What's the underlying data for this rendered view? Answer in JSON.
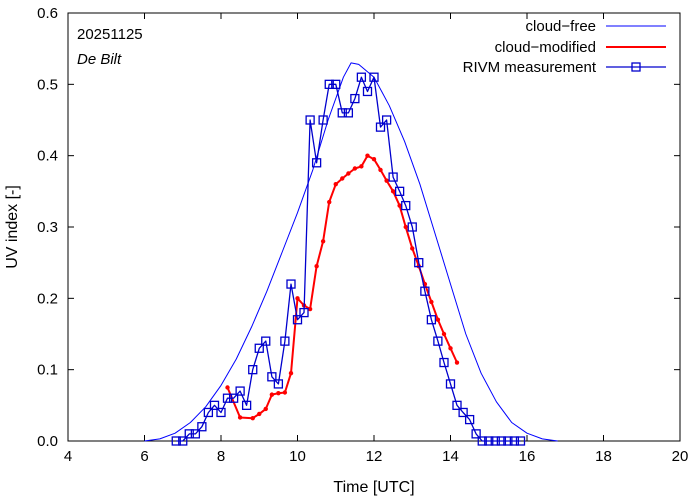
{
  "chart_data": {
    "type": "line",
    "xlabel": "Time  [UTC]",
    "ylabel": "UV index  [-]",
    "xlim": [
      4,
      20
    ],
    "ylim": [
      0,
      0.6
    ],
    "xticks": [
      4,
      6,
      8,
      10,
      12,
      14,
      16,
      18,
      20
    ],
    "yticks": [
      0.0,
      0.1,
      0.2,
      0.3,
      0.4,
      0.5,
      0.6
    ],
    "xtick_labels": [
      "4",
      "6",
      "8",
      "10",
      "12",
      "14",
      "16",
      "18",
      "20"
    ],
    "ytick_labels": [
      "0.0",
      "0.1",
      "0.2",
      "0.3",
      "0.4",
      "0.5",
      "0.6"
    ],
    "annotations": {
      "date": "20251125",
      "location": "De Bilt"
    },
    "legend_position": "top-right",
    "series": [
      {
        "name": "cloud−free",
        "color": "#0000ff",
        "style": "line",
        "x": [
          6.0,
          6.4,
          6.8,
          7.2,
          7.6,
          8.0,
          8.4,
          8.8,
          9.2,
          9.6,
          10.0,
          10.4,
          10.8,
          11.2,
          11.4,
          11.6,
          12.0,
          12.4,
          12.8,
          13.2,
          13.6,
          14.0,
          14.4,
          14.8,
          15.2,
          15.6,
          16.0,
          16.4,
          16.8
        ],
        "y": [
          0.0,
          0.003,
          0.011,
          0.026,
          0.048,
          0.078,
          0.115,
          0.16,
          0.21,
          0.265,
          0.32,
          0.38,
          0.45,
          0.51,
          0.53,
          0.528,
          0.51,
          0.47,
          0.42,
          0.36,
          0.29,
          0.22,
          0.15,
          0.095,
          0.055,
          0.026,
          0.011,
          0.003,
          0.0
        ]
      },
      {
        "name": "cloud−modified",
        "color": "#ff0000",
        "style": "line-dots",
        "x": [
          8.17,
          8.5,
          8.83,
          9.0,
          9.17,
          9.33,
          9.5,
          9.67,
          9.83,
          10.0,
          10.17,
          10.33,
          10.5,
          10.67,
          10.83,
          11.0,
          11.17,
          11.33,
          11.5,
          11.67,
          11.83,
          12.0,
          12.17,
          12.33,
          12.5,
          12.67,
          12.83,
          13.0,
          13.17,
          13.33,
          13.5,
          13.67,
          13.83,
          14.0,
          14.17
        ],
        "y": [
          0.075,
          0.033,
          0.032,
          0.038,
          0.045,
          0.065,
          0.067,
          0.068,
          0.095,
          0.2,
          0.19,
          0.185,
          0.245,
          0.28,
          0.335,
          0.36,
          0.368,
          0.375,
          0.382,
          0.385,
          0.4,
          0.395,
          0.38,
          0.365,
          0.35,
          0.33,
          0.3,
          0.27,
          0.245,
          0.22,
          0.195,
          0.17,
          0.15,
          0.13,
          0.11
        ]
      },
      {
        "name": "RIVM measurement",
        "color": "#0000cd",
        "style": "line-squares",
        "x": [
          6.83,
          7.0,
          7.17,
          7.33,
          7.5,
          7.67,
          7.83,
          8.0,
          8.17,
          8.33,
          8.5,
          8.67,
          8.83,
          9.0,
          9.17,
          9.33,
          9.5,
          9.67,
          9.83,
          10.0,
          10.17,
          10.33,
          10.5,
          10.67,
          10.83,
          11.0,
          11.17,
          11.33,
          11.5,
          11.67,
          11.83,
          12.0,
          12.17,
          12.33,
          12.5,
          12.67,
          12.83,
          13.0,
          13.17,
          13.33,
          13.5,
          13.67,
          13.83,
          14.0,
          14.17,
          14.33,
          14.5,
          14.67,
          14.83,
          15.0,
          15.17,
          15.33,
          15.5,
          15.67,
          15.83
        ],
        "y": [
          0.0,
          0.0,
          0.01,
          0.01,
          0.02,
          0.04,
          0.05,
          0.04,
          0.06,
          0.06,
          0.07,
          0.05,
          0.1,
          0.13,
          0.14,
          0.09,
          0.08,
          0.14,
          0.22,
          0.17,
          0.18,
          0.45,
          0.39,
          0.45,
          0.5,
          0.5,
          0.46,
          0.46,
          0.48,
          0.51,
          0.49,
          0.51,
          0.44,
          0.45,
          0.37,
          0.35,
          0.33,
          0.3,
          0.25,
          0.21,
          0.17,
          0.14,
          0.11,
          0.08,
          0.05,
          0.04,
          0.03,
          0.01,
          0.0,
          0.0,
          0.0,
          0.0,
          0.0,
          0.0,
          0.0
        ]
      }
    ]
  }
}
